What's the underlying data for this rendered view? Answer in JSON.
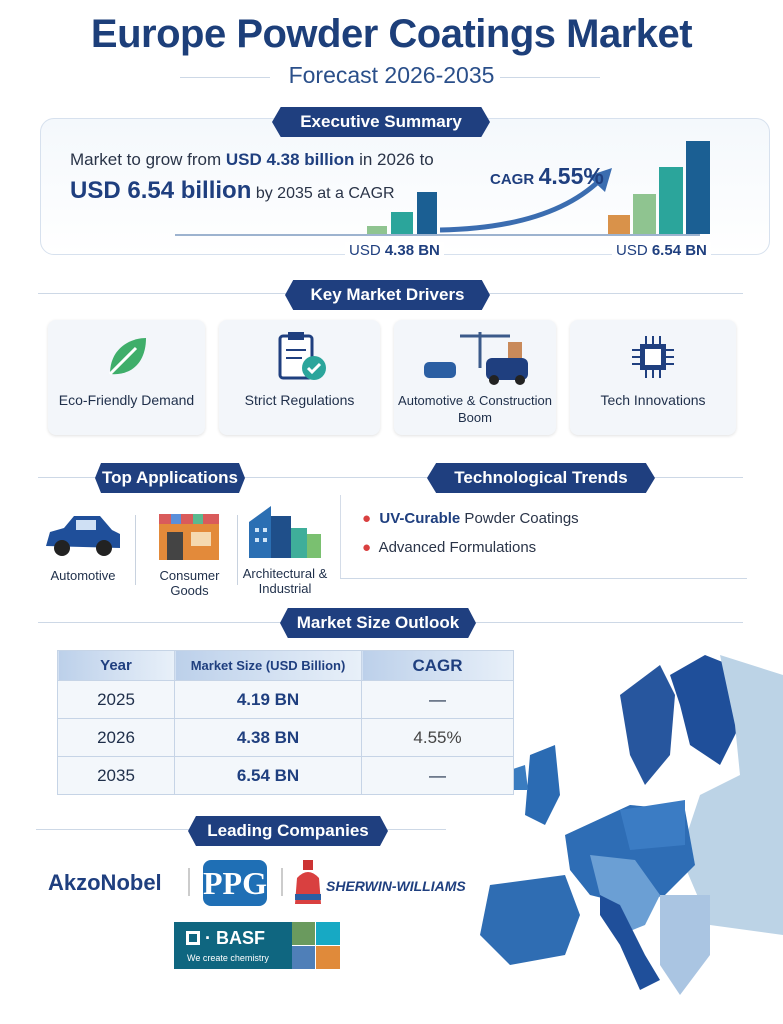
{
  "header": {
    "title": "Europe Powder Coatings Market",
    "subtitle": "Forecast 2026-2035"
  },
  "executive_summary": {
    "heading": "Executive Summary",
    "line1_pre": "Market to grow from ",
    "line1_bold": "USD 4.38 billion",
    "line1_post": " in 2026 to",
    "line2_bold": "USD 6.54 billion",
    "line2_post": " by 2035 at a CAGR",
    "cagr_label": "CAGR",
    "cagr_value": "4.55%",
    "start_label_pre": "USD ",
    "start_label_bold": "4.38 BN",
    "end_label_pre": "USD ",
    "end_label_bold": "6.54 BN"
  },
  "drivers": {
    "heading": "Key Market Drivers",
    "items": [
      {
        "label": "Eco-Friendly Demand",
        "icon": "leaf-icon"
      },
      {
        "label": "Strict Regulations",
        "icon": "clipboard-check-icon"
      },
      {
        "label": "Automotive & Construction Boom",
        "icon": "car-crane-icon"
      },
      {
        "label": "Tech Innovations",
        "icon": "chip-icon"
      }
    ]
  },
  "applications": {
    "heading": "Top Applications",
    "items": [
      {
        "label": "Automotive",
        "icon": "car-icon"
      },
      {
        "label": "Consumer Goods",
        "icon": "store-icon"
      },
      {
        "label": "Architectural & Industrial",
        "icon": "buildings-icon"
      }
    ]
  },
  "trends": {
    "heading": "Technological Trends",
    "items": [
      {
        "bold": "UV-Curable",
        "rest": " Powder Coatings"
      },
      {
        "bold": "",
        "rest": "Advanced Formulations"
      }
    ]
  },
  "outlook": {
    "heading": "Market Size Outlook",
    "columns": [
      "Year",
      "Market Size (USD Billion)",
      "CAGR"
    ],
    "rows": [
      [
        "2025",
        "4.19 BN",
        "—"
      ],
      [
        "2026",
        "4.38 BN",
        "4.55%"
      ],
      [
        "2035",
        "6.54 BN",
        "—"
      ]
    ]
  },
  "companies": {
    "heading": "Leading Companies",
    "akzo": "AkzoNobel",
    "ppg": "PPG",
    "sherwin": "Sherwin-Williams",
    "basf": "BASF",
    "basf_tagline": "We create chemistry"
  },
  "colors": {
    "navy": "#1f3f7f",
    "accent_red": "#d94040",
    "teal": "#2ba59b",
    "green": "#8fc490",
    "orange": "#d9924a",
    "blue": "#1b5f93"
  }
}
